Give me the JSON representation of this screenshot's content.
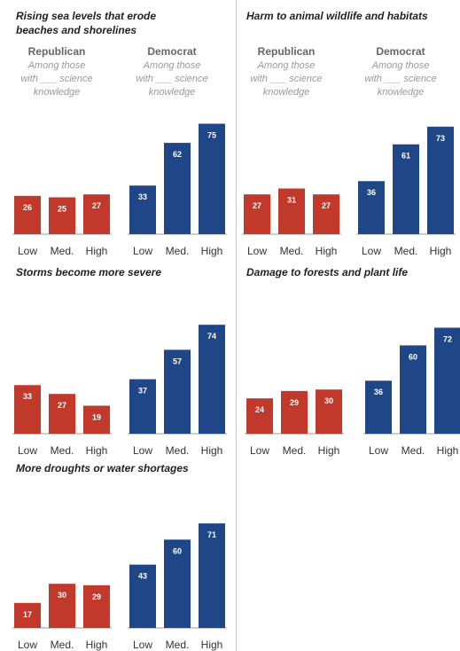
{
  "colors": {
    "republican": "#c0392b",
    "democrat": "#1f4788",
    "bar_label": "#ffffff"
  },
  "chart_data": [
    {
      "type": "bar",
      "title": "Rising sea levels that erode beaches and shorelines",
      "title_lines": [
        "Rising sea levels that erode",
        "beaches and shorelines"
      ],
      "categories": [
        "Low",
        "Med.",
        "High"
      ],
      "series": [
        {
          "name": "Republican",
          "values": [
            26,
            25,
            27
          ]
        },
        {
          "name": "Democrat",
          "values": [
            33,
            62,
            75
          ]
        }
      ],
      "group_note": [
        "Among those",
        "with ___ science",
        "knowledge"
      ],
      "ylim": [
        0,
        100
      ]
    },
    {
      "type": "bar",
      "title": "Harm to animal wildlife and habitats",
      "title_lines": [
        "Harm to animal wildlife and habitats"
      ],
      "categories": [
        "Low",
        "Med.",
        "High"
      ],
      "series": [
        {
          "name": "Republican",
          "values": [
            27,
            31,
            27
          ]
        },
        {
          "name": "Democrat",
          "values": [
            36,
            61,
            73
          ]
        }
      ],
      "group_note": [
        "Among those",
        "with ___ science",
        "knowledge"
      ],
      "ylim": [
        0,
        100
      ]
    },
    {
      "type": "bar",
      "title": "Storms become more severe",
      "title_lines": [
        "Storms become more severe"
      ],
      "categories": [
        "Low",
        "Med.",
        "High"
      ],
      "series": [
        {
          "name": "Republican",
          "values": [
            33,
            27,
            19
          ]
        },
        {
          "name": "Democrat",
          "values": [
            37,
            57,
            74
          ]
        }
      ],
      "ylim": [
        0,
        100
      ]
    },
    {
      "type": "bar",
      "title": "Damage to forests and plant life",
      "title_lines": [
        "Damage to forests and plant life"
      ],
      "categories": [
        "Low",
        "Med.",
        "High"
      ],
      "series": [
        {
          "name": "Republican",
          "values": [
            24,
            29,
            30
          ]
        },
        {
          "name": "Democrat",
          "values": [
            36,
            60,
            72
          ]
        }
      ],
      "ylim": [
        0,
        100
      ]
    },
    {
      "type": "bar",
      "title": "More droughts or water shortages",
      "title_lines": [
        "More droughts or water shortages"
      ],
      "categories": [
        "Low",
        "Med.",
        "High"
      ],
      "series": [
        {
          "name": "Republican",
          "values": [
            17,
            30,
            29
          ]
        },
        {
          "name": "Democrat",
          "values": [
            43,
            60,
            71
          ]
        }
      ],
      "ylim": [
        0,
        100
      ]
    }
  ]
}
